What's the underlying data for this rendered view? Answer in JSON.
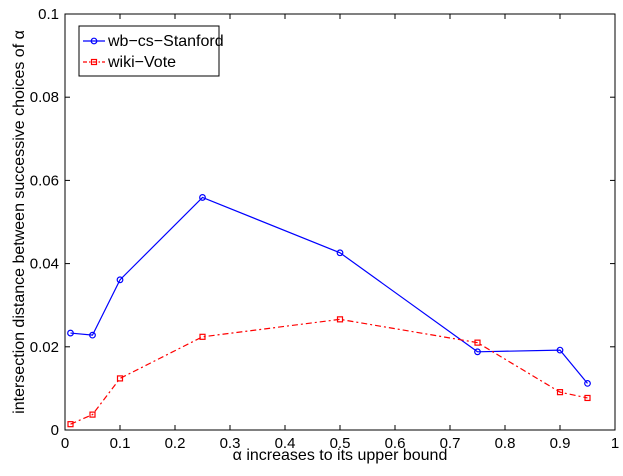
{
  "chart_data": {
    "type": "line",
    "xlabel": "α  increases to its upper bound",
    "ylabel": "intersection distance between successive choices of α",
    "xlim": [
      0,
      1
    ],
    "ylim": [
      0,
      0.1
    ],
    "xticks": [
      0,
      0.1,
      0.2,
      0.3,
      0.4,
      0.5,
      0.6,
      0.7,
      0.8,
      0.9,
      1
    ],
    "xtick_labels": [
      "0",
      "0.1",
      "0.2",
      "0.3",
      "0.4",
      "0.5",
      "0.6",
      "0.7",
      "0.8",
      "0.9",
      "1"
    ],
    "yticks": [
      0,
      0.02,
      0.04,
      0.06,
      0.08,
      0.1
    ],
    "ytick_labels": [
      "0",
      "0.02",
      "0.04",
      "0.06",
      "0.08",
      "0.1"
    ],
    "grid": false,
    "legend_position": "top-left",
    "series": [
      {
        "name": "wb−cs−Stanford",
        "color": "#0000ff",
        "line_style": "solid",
        "marker": "circle",
        "x": [
          0.01,
          0.05,
          0.1,
          0.25,
          0.5,
          0.75,
          0.9,
          0.95
        ],
        "y": [
          0.0233,
          0.0228,
          0.0361,
          0.0559,
          0.0426,
          0.0188,
          0.0192,
          0.0112
        ]
      },
      {
        "name": "wiki−Vote",
        "color": "#ff0000",
        "line_style": "dashdot",
        "marker": "square",
        "x": [
          0.01,
          0.05,
          0.1,
          0.25,
          0.5,
          0.75,
          0.9,
          0.95
        ],
        "y": [
          0.0014,
          0.0037,
          0.0124,
          0.0224,
          0.0266,
          0.021,
          0.0091,
          0.0077
        ]
      }
    ]
  }
}
